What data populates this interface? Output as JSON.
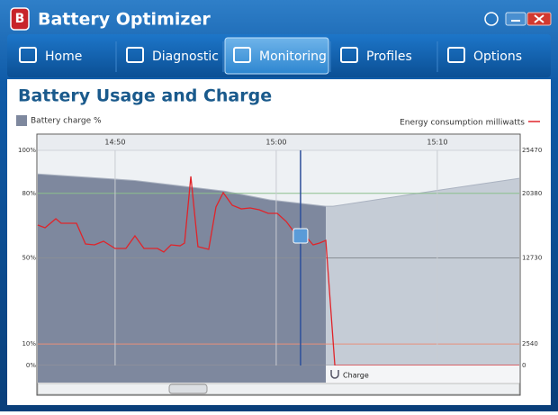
{
  "app": {
    "title": "Battery Optimizer",
    "tabs": [
      "Home",
      "Diagnostic",
      "Monitoring",
      "Profiles",
      "Options"
    ],
    "active_tab": 2
  },
  "chart_data": {
    "type": "combo",
    "title": "Battery Usage and Charge",
    "series": [
      {
        "name": "Battery charge %",
        "color": "#7e889e",
        "charging_color": "#c5ccd6",
        "x": [
          885.2,
          891.23,
          896.82,
          899.6,
          903.08,
          903.53,
          909.68,
          915.09
        ],
        "values": [
          89,
          86,
          81,
          77,
          74,
          74,
          81,
          87
        ]
      },
      {
        "name": "Energy consumption milliwatts",
        "color": "#e0242a",
        "axis": "y2",
        "x": [
          885.2,
          885.65,
          886.32,
          886.65,
          887.6,
          888.16,
          888.72,
          889.28,
          890.0,
          890.67,
          891.23,
          891.79,
          892.63,
          893.02,
          893.47,
          894.03,
          894.31,
          894.7,
          895.14,
          895.81,
          896.26,
          896.71,
          897.27,
          897.83,
          898.38,
          898.94,
          899.5,
          900.06,
          900.62,
          901.29,
          901.85,
          902.29,
          902.69,
          903.08,
          903.64,
          915.09
        ],
        "values": [
          16620,
          16310,
          17370,
          16840,
          16840,
          14390,
          14280,
          14710,
          13850,
          13850,
          15350,
          13850,
          13850,
          13430,
          14280,
          14170,
          14490,
          22380,
          14070,
          13750,
          18760,
          20460,
          18970,
          18540,
          18650,
          18440,
          18010,
          18010,
          17050,
          15350,
          15240,
          14280,
          14490,
          14810,
          0,
          0
        ]
      }
    ],
    "xlim": [
      885.2,
      915.09
    ],
    "xticks": [
      {
        "value": 890,
        "label": "14:50"
      },
      {
        "value": 900,
        "label": "15:00"
      },
      {
        "value": 910,
        "label": "15:10"
      }
    ],
    "ylim": [
      0,
      100
    ],
    "yticks": [
      {
        "value": 0,
        "label": "0%"
      },
      {
        "value": 10,
        "label": "10%"
      },
      {
        "value": 50,
        "label": "50%"
      },
      {
        "value": 80,
        "label": "80%"
      },
      {
        "value": 100,
        "label": "100%"
      }
    ],
    "y2lim": [
      0,
      25470
    ],
    "y2ticks": [
      0,
      2540,
      12730,
      20380,
      25470
    ],
    "annotation": {
      "text": "Charge",
      "x": 903.08
    },
    "cursor_x": 901.51,
    "grid": true
  }
}
